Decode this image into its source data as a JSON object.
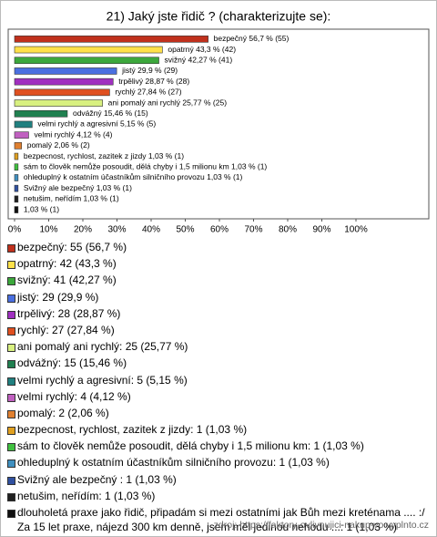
{
  "title": "21) Jaký jste řidič ? (charakterizujte se):",
  "source": "zdroj: https://faktory-ovlivnujici-nakup-vo.vyplnto.cz",
  "chart_data": {
    "type": "bar",
    "orientation": "horizontal",
    "values": [
      56.7,
      43.3,
      42.27,
      29.9,
      28.87,
      27.84,
      25.77,
      15.46,
      5.15,
      4.12,
      2.06,
      1.03,
      1.03,
      1.03,
      1.03,
      1.03,
      1.03
    ],
    "value_labels": [
      "bezpečný 56,7 % (55)",
      "opatrný 43,3 % (42)",
      "svižný 42,27 % (41)",
      "jistý 29,9 % (29)",
      "trpělivý 28,87 % (28)",
      "rychlý 27,84 % (27)",
      "ani pomalý ani rychlý 25,77 % (25)",
      "odvážný 15,46 % (15)",
      "velmi rychlý a agresivní 5,15 % (5)",
      "velmi rychlý 4,12 % (4)",
      "pomalý 2,06 % (2)",
      "bezpecnost, rychlost, zazitek z jizdy 1,03 % (1)",
      "sám to člověk nemůže posoudit, dělá chyby i 1,5 milionu km 1,03 % (1)",
      "ohleduplný k ostatním účastníkům silničního provozu 1,03 % (1)",
      "Svižný ale bezpečný  1,03 % (1)",
      "netušim, neřídím 1,03 % (1)",
      "1,03 % (1)"
    ],
    "legend_labels": [
      "bezpečný: 55 (56,7 %)",
      "opatrný: 42 (43,3 %)",
      "svižný: 41 (42,27 %)",
      "jistý: 29 (29,9 %)",
      "trpělivý: 28 (28,87 %)",
      "rychlý: 27 (27,84 %)",
      "ani pomalý ani rychlý: 25 (25,77 %)",
      "odvážný: 15 (15,46 %)",
      "velmi rychlý a agresivní: 5 (5,15 %)",
      "velmi rychlý: 4 (4,12 %)",
      "pomalý: 2 (2,06 %)",
      "bezpecnost, rychlost, zazitek z jizdy: 1 (1,03 %)",
      "sám to člověk nemůže posoudit, dělá chyby i 1,5 milionu km: 1 (1,03 %)",
      "ohleduplný k ostatním účastníkům silničního provozu: 1 (1,03 %)",
      "Svižný ale bezpečný : 1 (1,03 %)",
      "netušim, neřídím: 1 (1,03 %)",
      "dlouholetá praxe jako řidič, připadám si mezi ostatními jak Bůh mezi kreténama .... :/ Za 15 let praxe, nájezd 300 km denně, jsem měl jedinou nehodu ...: 1 (1,03 %)"
    ],
    "colors": [
      "#c0301c",
      "#ffe14a",
      "#3ca83c",
      "#4a6fe0",
      "#a030c0",
      "#e05020",
      "#d8f080",
      "#208050",
      "#208080",
      "#c060c0",
      "#e08030",
      "#e0a020",
      "#40c040",
      "#4090c0",
      "#3050a0",
      "#202020",
      "#101010"
    ],
    "xlim": [
      0,
      100
    ],
    "xticks": [
      {
        "value": 0,
        "label": "0%"
      },
      {
        "value": 10,
        "label": "10%"
      },
      {
        "value": 20,
        "label": "20%"
      },
      {
        "value": 30,
        "label": "30%"
      },
      {
        "value": 40,
        "label": "40%"
      },
      {
        "value": 50,
        "label": "50%"
      },
      {
        "value": 60,
        "label": "60%"
      },
      {
        "value": 70,
        "label": "70%"
      },
      {
        "value": 80,
        "label": "80%"
      },
      {
        "value": 90,
        "label": "90%"
      },
      {
        "value": 100,
        "label": "100%"
      }
    ]
  }
}
